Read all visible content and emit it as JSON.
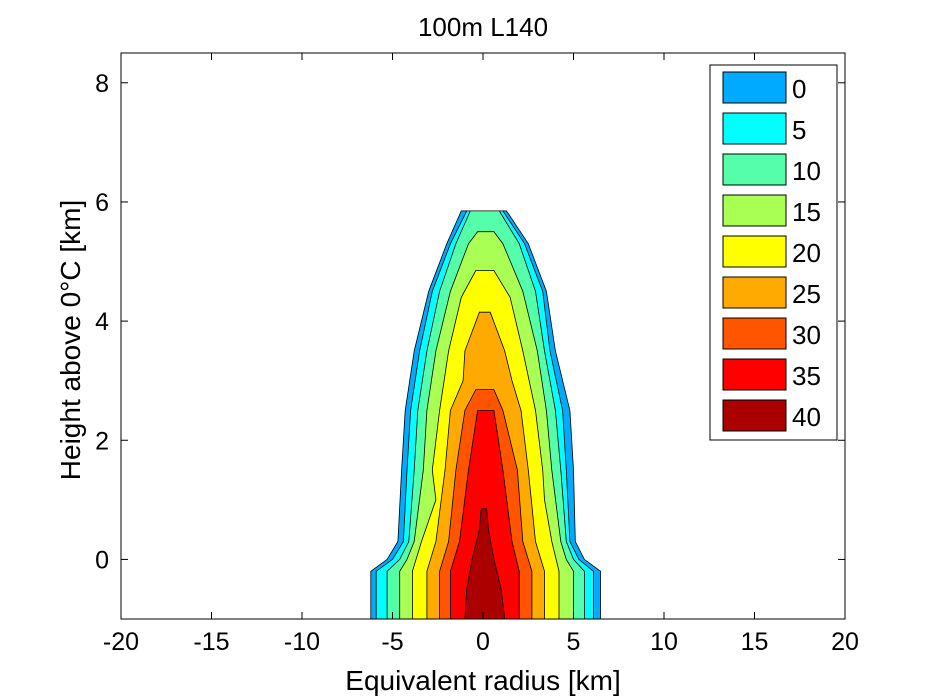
{
  "chart_data": {
    "type": "contour",
    "title": "100m L140",
    "xlabel": "Equivalent radius [km]",
    "ylabel": "Height above 0°C [km]",
    "xlim": [
      -20,
      20
    ],
    "ylim": [
      -1,
      8.5
    ],
    "xticks": [
      "-20",
      "-15",
      "-10",
      "-5",
      "0",
      "5",
      "10",
      "15",
      "20"
    ],
    "yticks": [
      "0",
      "2",
      "4",
      "6",
      "8"
    ],
    "legend_position": "top-right",
    "grid": false,
    "levels": [
      {
        "value": 0,
        "label": "0",
        "color": "#00aaff",
        "top": 5.85,
        "profile": [
          [
            -1,
            -6.2,
            6.5
          ],
          [
            -0.2,
            -6.2,
            6.5
          ],
          [
            0.0,
            -5.3,
            5.6
          ],
          [
            0.3,
            -4.7,
            5.1
          ],
          [
            1.5,
            -4.5,
            5.0
          ],
          [
            2.5,
            -4.3,
            4.8
          ],
          [
            3.5,
            -3.8,
            4.0
          ],
          [
            4.5,
            -3.0,
            3.5
          ],
          [
            5.3,
            -2.0,
            2.5
          ],
          [
            5.85,
            -1.2,
            1.3
          ]
        ]
      },
      {
        "value": 5,
        "label": "5",
        "color": "#00ffff",
        "top": 5.85,
        "profile": [
          [
            -1,
            -5.9,
            6.1
          ],
          [
            -0.2,
            -5.9,
            6.1
          ],
          [
            0.0,
            -5.0,
            5.3
          ],
          [
            0.3,
            -4.4,
            4.8
          ],
          [
            1.5,
            -4.2,
            4.6
          ],
          [
            2.5,
            -4.0,
            4.4
          ],
          [
            3.5,
            -3.5,
            3.7
          ],
          [
            4.5,
            -2.8,
            3.3
          ],
          [
            5.3,
            -1.8,
            2.3
          ],
          [
            5.85,
            -0.9,
            1.1
          ]
        ]
      },
      {
        "value": 10,
        "label": "10",
        "color": "#55ffaa",
        "top": 5.85,
        "profile": [
          [
            -1,
            -5.3,
            5.6
          ],
          [
            -0.2,
            -5.3,
            5.6
          ],
          [
            0.0,
            -4.6,
            5.0
          ],
          [
            0.3,
            -4.1,
            4.6
          ],
          [
            1.5,
            -3.8,
            4.3
          ],
          [
            2.5,
            -3.6,
            4.0
          ],
          [
            3.5,
            -3.1,
            3.4
          ],
          [
            4.5,
            -2.4,
            2.9
          ],
          [
            5.3,
            -1.5,
            2.0
          ],
          [
            5.85,
            -0.7,
            0.9
          ]
        ]
      },
      {
        "value": 15,
        "label": "15",
        "color": "#aaff55",
        "top": 5.5,
        "profile": [
          [
            -1,
            -4.6,
            5.0
          ],
          [
            -0.2,
            -4.6,
            5.0
          ],
          [
            0.0,
            -4.2,
            4.6
          ],
          [
            0.3,
            -3.8,
            4.3
          ],
          [
            1.5,
            -3.3,
            3.8
          ],
          [
            2.5,
            -3.1,
            3.5
          ],
          [
            3.5,
            -2.6,
            3.0
          ],
          [
            4.5,
            -1.8,
            2.2
          ],
          [
            5.3,
            -0.8,
            1.1
          ],
          [
            5.5,
            -0.3,
            0.6
          ]
        ]
      },
      {
        "value": 20,
        "label": "20",
        "color": "#ffff00",
        "top": 4.85,
        "profile": [
          [
            -1,
            -3.9,
            4.2
          ],
          [
            -0.2,
            -3.9,
            4.2
          ],
          [
            0.3,
            -3.4,
            3.8
          ],
          [
            1.0,
            -2.6,
            3.4
          ],
          [
            1.5,
            -2.8,
            3.3
          ],
          [
            2.5,
            -2.4,
            2.9
          ],
          [
            3.5,
            -1.9,
            2.2
          ],
          [
            4.4,
            -1.2,
            1.5
          ],
          [
            4.85,
            -0.4,
            0.6
          ]
        ]
      },
      {
        "value": 25,
        "label": "25",
        "color": "#ffaa00",
        "top": 4.15,
        "profile": [
          [
            -1,
            -3.1,
            3.4
          ],
          [
            -0.2,
            -3.1,
            3.4
          ],
          [
            0.3,
            -2.6,
            2.9
          ],
          [
            1.5,
            -2.1,
            2.5
          ],
          [
            2.5,
            -1.8,
            2.1
          ],
          [
            3.0,
            -1.1,
            1.6
          ],
          [
            3.5,
            -1.0,
            1.2
          ],
          [
            4.15,
            -0.2,
            0.4
          ]
        ]
      },
      {
        "value": 30,
        "label": "30",
        "color": "#ff5500",
        "top": 2.85,
        "profile": [
          [
            -1,
            -2.4,
            2.7
          ],
          [
            -0.2,
            -2.4,
            2.7
          ],
          [
            0.3,
            -1.9,
            2.2
          ],
          [
            1.5,
            -1.5,
            1.9
          ],
          [
            2.5,
            -1.0,
            1.1
          ],
          [
            2.85,
            -0.4,
            0.6
          ]
        ]
      },
      {
        "value": 35,
        "label": "35",
        "color": "#ff0000",
        "top": 2.5,
        "profile": [
          [
            -1,
            -1.8,
            2.0
          ],
          [
            -0.2,
            -1.8,
            2.0
          ],
          [
            0.3,
            -1.3,
            1.6
          ],
          [
            1.5,
            -0.8,
            1.1
          ],
          [
            2.5,
            -0.3,
            0.6
          ]
        ]
      },
      {
        "value": 40,
        "label": "40",
        "color": "#aa0000",
        "top": 0.85,
        "profile": [
          [
            -1,
            -1.0,
            1.2
          ],
          [
            -0.5,
            -0.9,
            1.0
          ],
          [
            0.0,
            -0.6,
            0.6
          ],
          [
            0.5,
            -0.2,
            0.3
          ],
          [
            0.85,
            -0.1,
            0.2
          ]
        ]
      }
    ]
  }
}
